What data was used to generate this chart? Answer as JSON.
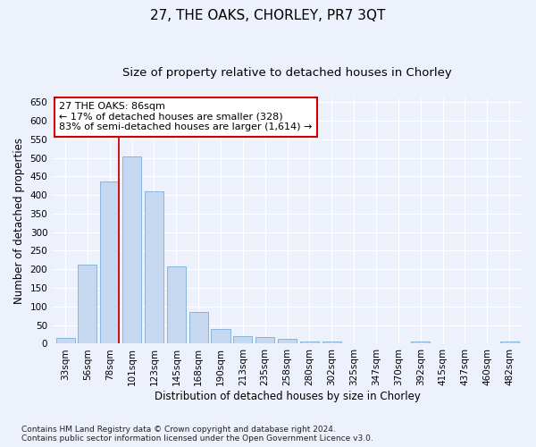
{
  "title": "27, THE OAKS, CHORLEY, PR7 3QT",
  "subtitle": "Size of property relative to detached houses in Chorley",
  "xlabel": "Distribution of detached houses by size in Chorley",
  "ylabel": "Number of detached properties",
  "categories": [
    "33sqm",
    "56sqm",
    "78sqm",
    "101sqm",
    "123sqm",
    "145sqm",
    "168sqm",
    "190sqm",
    "213sqm",
    "235sqm",
    "258sqm",
    "280sqm",
    "302sqm",
    "325sqm",
    "347sqm",
    "370sqm",
    "392sqm",
    "415sqm",
    "437sqm",
    "460sqm",
    "482sqm"
  ],
  "values": [
    15,
    212,
    437,
    503,
    410,
    207,
    85,
    40,
    20,
    18,
    12,
    6,
    5,
    0,
    0,
    0,
    5,
    0,
    0,
    0,
    5
  ],
  "bar_color": "#c5d8f0",
  "bar_edge_color": "#7bafd4",
  "highlight_bar_index": 2,
  "highlight_color": "#cc0000",
  "annotation_text": "27 THE OAKS: 86sqm\n← 17% of detached houses are smaller (328)\n83% of semi-detached houses are larger (1,614) →",
  "annotation_box_color": "#ffffff",
  "annotation_box_edge": "#cc0000",
  "ylim": [
    0,
    660
  ],
  "yticks": [
    0,
    50,
    100,
    150,
    200,
    250,
    300,
    350,
    400,
    450,
    500,
    550,
    600,
    650
  ],
  "background_color": "#edf1fb",
  "plot_bg_color": "#edf1fb",
  "footnote": "Contains HM Land Registry data © Crown copyright and database right 2024.\nContains public sector information licensed under the Open Government Licence v3.0.",
  "title_fontsize": 11,
  "subtitle_fontsize": 9.5,
  "xlabel_fontsize": 8.5,
  "ylabel_fontsize": 8.5,
  "tick_fontsize": 7.5,
  "annotation_fontsize": 8,
  "footnote_fontsize": 6.5
}
